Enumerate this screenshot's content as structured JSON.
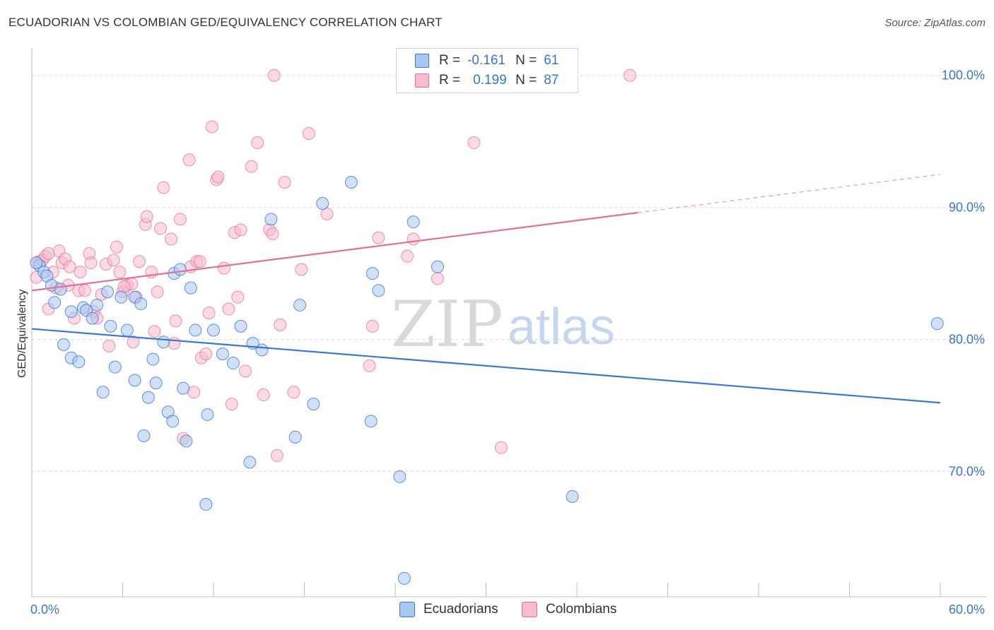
{
  "title": "ECUADORIAN VS COLOMBIAN GED/EQUIVALENCY CORRELATION CHART",
  "source": "Source: ZipAtlas.com",
  "watermark": {
    "part1": "ZIP",
    "part2": "atlas"
  },
  "legend": {
    "rows": [
      {
        "r_label": "R =",
        "r_value": "-0.161",
        "n_label": "N =",
        "n_value": "61",
        "color": "#a9c8f0"
      },
      {
        "r_label": "R =",
        "r_value": "0.199",
        "n_label": "N =",
        "n_value": "87",
        "color": "#f7bcd0"
      }
    ]
  },
  "bottom_legend": {
    "ecuadorians": "Ecuadorians",
    "colombians": "Colombians"
  },
  "colors": {
    "blue": "#3a76d8",
    "pink": "#e46e98",
    "blue_fill": "#a9c8f0",
    "pink_fill": "#f7bcd0",
    "tick": "#3a76c9"
  },
  "chart_data": {
    "type": "scatter",
    "title": "ECUADORIAN VS COLOMBIAN GED/EQUIVALENCY CORRELATION CHART",
    "xlabel": "",
    "ylabel": "GED/Equivalency",
    "xlim": [
      0,
      60
    ],
    "ylim": [
      60.5,
      102.5
    ],
    "x_tick_labels": [
      "0.0%",
      "60.0%"
    ],
    "y_ticks": [
      70,
      80,
      90,
      100
    ],
    "y_tick_labels": [
      "70.0%",
      "80.0%",
      "90.0%",
      "100.0%"
    ],
    "grid": true,
    "legend_position": "top-center",
    "series": [
      {
        "name": "Ecuadorians",
        "color": "#a9c8f0",
        "points": [
          [
            0.5,
            85.6
          ],
          [
            0.8,
            85.1
          ],
          [
            1.0,
            84.8
          ],
          [
            1.3,
            84.1
          ],
          [
            1.5,
            82.8
          ],
          [
            1.9,
            83.8
          ],
          [
            2.1,
            79.6
          ],
          [
            2.6,
            78.6
          ],
          [
            3.1,
            78.3
          ],
          [
            2.6,
            82.1
          ],
          [
            3.4,
            82.4
          ],
          [
            3.6,
            82.2
          ],
          [
            4.0,
            81.6
          ],
          [
            4.3,
            82.6
          ],
          [
            4.7,
            76.0
          ],
          [
            5.0,
            83.6
          ],
          [
            5.2,
            81.0
          ],
          [
            5.5,
            77.9
          ],
          [
            5.9,
            83.2
          ],
          [
            6.3,
            80.7
          ],
          [
            6.8,
            83.2
          ],
          [
            6.8,
            76.9
          ],
          [
            7.2,
            82.7
          ],
          [
            7.4,
            72.7
          ],
          [
            7.7,
            75.6
          ],
          [
            8.0,
            78.5
          ],
          [
            8.2,
            76.7
          ],
          [
            8.7,
            79.8
          ],
          [
            9.0,
            74.5
          ],
          [
            9.3,
            73.8
          ],
          [
            9.4,
            85.0
          ],
          [
            9.8,
            85.3
          ],
          [
            10.0,
            76.3
          ],
          [
            10.2,
            72.3
          ],
          [
            10.5,
            83.9
          ],
          [
            10.8,
            80.7
          ],
          [
            11.5,
            67.5
          ],
          [
            11.6,
            74.3
          ],
          [
            12.0,
            80.7
          ],
          [
            12.6,
            78.9
          ],
          [
            13.3,
            78.2
          ],
          [
            13.8,
            81.0
          ],
          [
            14.4,
            70.7
          ],
          [
            14.6,
            79.7
          ],
          [
            15.2,
            79.2
          ],
          [
            15.8,
            89.1
          ],
          [
            17.4,
            72.6
          ],
          [
            17.7,
            82.6
          ],
          [
            18.6,
            75.1
          ],
          [
            19.2,
            90.3
          ],
          [
            21.1,
            91.9
          ],
          [
            22.4,
            73.8
          ],
          [
            22.5,
            85.0
          ],
          [
            22.9,
            83.7
          ],
          [
            24.3,
            69.6
          ],
          [
            24.6,
            61.9
          ],
          [
            25.2,
            88.9
          ],
          [
            26.8,
            85.5
          ],
          [
            35.7,
            68.1
          ],
          [
            59.8,
            81.2
          ],
          [
            0.3,
            85.8
          ]
        ]
      },
      {
        "name": "Colombians",
        "color": "#f7bcd0",
        "points": [
          [
            0.3,
            84.7
          ],
          [
            0.5,
            85.9
          ],
          [
            0.7,
            86.0
          ],
          [
            0.9,
            86.3
          ],
          [
            1.1,
            86.5
          ],
          [
            1.1,
            82.3
          ],
          [
            1.4,
            85.1
          ],
          [
            1.6,
            83.9
          ],
          [
            1.8,
            86.7
          ],
          [
            2.0,
            85.8
          ],
          [
            2.2,
            86.1
          ],
          [
            2.4,
            84.1
          ],
          [
            2.8,
            81.6
          ],
          [
            3.1,
            83.7
          ],
          [
            3.2,
            85.1
          ],
          [
            3.5,
            83.7
          ],
          [
            3.8,
            86.5
          ],
          [
            3.9,
            85.8
          ],
          [
            4.1,
            82.1
          ],
          [
            4.3,
            81.6
          ],
          [
            4.6,
            83.4
          ],
          [
            4.9,
            85.7
          ],
          [
            5.1,
            79.5
          ],
          [
            5.4,
            86.0
          ],
          [
            5.6,
            87.0
          ],
          [
            5.8,
            85.1
          ],
          [
            6.0,
            83.6
          ],
          [
            6.3,
            84.1
          ],
          [
            6.6,
            84.2
          ],
          [
            6.7,
            79.8
          ],
          [
            6.9,
            83.2
          ],
          [
            7.1,
            85.9
          ],
          [
            7.5,
            88.7
          ],
          [
            7.6,
            89.3
          ],
          [
            7.9,
            85.1
          ],
          [
            8.1,
            80.6
          ],
          [
            8.3,
            83.6
          ],
          [
            8.5,
            88.4
          ],
          [
            8.7,
            91.5
          ],
          [
            9.2,
            87.6
          ],
          [
            9.4,
            79.7
          ],
          [
            9.5,
            81.4
          ],
          [
            9.8,
            89.1
          ],
          [
            10.0,
            72.5
          ],
          [
            10.4,
            93.6
          ],
          [
            10.5,
            85.5
          ],
          [
            10.7,
            76.0
          ],
          [
            10.9,
            85.9
          ],
          [
            11.2,
            78.6
          ],
          [
            11.5,
            78.9
          ],
          [
            11.7,
            82.0
          ],
          [
            11.9,
            96.1
          ],
          [
            12.2,
            92.1
          ],
          [
            12.3,
            92.3
          ],
          [
            12.7,
            85.4
          ],
          [
            13.2,
            75.1
          ],
          [
            13.4,
            88.1
          ],
          [
            13.6,
            83.2
          ],
          [
            13.8,
            88.3
          ],
          [
            14.1,
            77.6
          ],
          [
            14.5,
            93.1
          ],
          [
            14.9,
            94.9
          ],
          [
            15.3,
            75.8
          ],
          [
            15.7,
            88.3
          ],
          [
            15.9,
            88.0
          ],
          [
            16.2,
            71.2
          ],
          [
            16.4,
            81.1
          ],
          [
            16.7,
            91.9
          ],
          [
            17.3,
            76.0
          ],
          [
            17.8,
            85.3
          ],
          [
            18.3,
            95.6
          ],
          [
            19.5,
            89.5
          ],
          [
            16.0,
            100.0
          ],
          [
            22.3,
            78.0
          ],
          [
            22.5,
            81.0
          ],
          [
            22.9,
            87.7
          ],
          [
            24.8,
            86.3
          ],
          [
            25.2,
            87.6
          ],
          [
            26.8,
            84.6
          ],
          [
            29.2,
            94.9
          ],
          [
            31.0,
            71.8
          ],
          [
            32.0,
            100.0
          ],
          [
            39.5,
            100.0
          ],
          [
            2.5,
            85.5
          ],
          [
            6.1,
            84.0
          ],
          [
            11.1,
            85.9
          ],
          [
            13.0,
            82.3
          ]
        ]
      }
    ],
    "trendlines": [
      {
        "series": "Ecuadorians",
        "x": [
          0,
          60
        ],
        "y": [
          80.8,
          75.2
        ]
      },
      {
        "series": "Colombians",
        "x": [
          0,
          40,
          60
        ],
        "y": [
          83.7,
          89.6,
          92.5
        ]
      }
    ]
  }
}
